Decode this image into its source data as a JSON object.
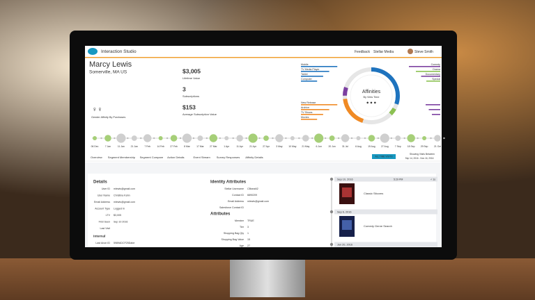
{
  "header": {
    "app": "Interaction Studio",
    "feedback": "Feedback",
    "org": "Stellar Media",
    "user": "Steve Smith"
  },
  "profile": {
    "name": "Marcy Lewis",
    "location": "Somerville, MA US",
    "gender_label": "Gender Affinity By Purchases"
  },
  "metrics": [
    {
      "value": "$3,005",
      "label": "Lifetime Value"
    },
    {
      "value": "3",
      "label": "Subscriptions"
    },
    {
      "value": "$153",
      "label": "Average Subscription Value"
    }
  ],
  "affinities": {
    "title": "Affinities",
    "subtitle": "By View Time",
    "devices": [
      "Mobile",
      "TV Media Player",
      "Tablet",
      "Computer"
    ],
    "content": [
      "New Release",
      "Archive",
      "TV Shows",
      "Movies"
    ],
    "genres": [
      "Comedy",
      "Drama",
      "Documentary",
      "Special"
    ]
  },
  "timeline": [
    "06 Dec",
    "7 Jan",
    "11 Jan",
    "21 Jan",
    "7 Feb",
    "14 Feb",
    "27 Feb",
    "8 Mar",
    "17 Mar",
    "27 Mar",
    "1 Apr",
    "11 Apr",
    "21 Apr",
    "27 Apr",
    "3 May",
    "10 May",
    "21 May",
    "6 Jun",
    "20 Jun",
    "31 Jul",
    "6 Aug",
    "19 Aug",
    "27 Aug",
    "7 Sep",
    "18 Sep",
    "29 Sep",
    "21 Oct"
  ],
  "tabs": [
    "Overview",
    "Segment Membership",
    "Segment Compare",
    "Action Details",
    "Event Stream",
    "Survey Responses",
    "Affinity Details"
  ],
  "visits": {
    "button": "ALL TIME VISITS",
    "label": "Showing Visits Between",
    "range": "Sep 14, 2016 - Nov 16, 2016"
  },
  "details": {
    "title": "Details",
    "rows": [
      [
        "User ID",
        "mlewis@gmail.com"
      ],
      [
        "User Name",
        "Christina Kahn"
      ],
      [
        "Email Address",
        "mlewis@gmail.com"
      ],
      [
        "Account Type",
        "Logged In"
      ],
      [
        "LTV",
        "$3,005"
      ],
      [
        "First Seen",
        "Sep 10 2016"
      ],
      [
        "Last Visit"
      ]
    ],
    "internal": "Internal",
    "internal_rows": [
      [
        "Last Anon ID",
        "5989ADCF25Dabe"
      ]
    ]
  },
  "identity": {
    "title": "Identity Attributes",
    "rows": [
      [
        "Stellar Username",
        "CBseat42"
      ],
      [
        "Contact ID",
        "6890209"
      ],
      [
        "Email Address",
        "mlewis@gmail.com"
      ],
      [
        "Salesforce Contact ID"
      ]
    ]
  },
  "attributes": {
    "title": "Attributes",
    "rows": [
      [
        "Member",
        "TRUE"
      ],
      [
        "Tier",
        "3"
      ],
      [
        "Shopping Bag Qty",
        "1"
      ],
      [
        "Shopping Bag Value",
        "15"
      ],
      [
        "Age",
        "27"
      ]
    ]
  },
  "feed": [
    {
      "date": "Sep 10, 2016",
      "time": "5:29 PM",
      "ago": "< 1s",
      "item": "Classic Sitcoms"
    },
    {
      "date": "Sep 6, 2016",
      "item": "Comedy Genre Search"
    },
    {
      "date": "Jun 20, 2016"
    }
  ]
}
